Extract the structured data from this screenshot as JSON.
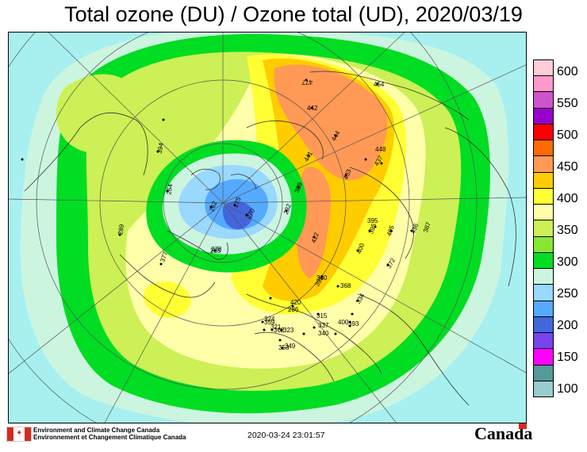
{
  "title": "Total ozone (DU) / Ozone total (UD), 2020/03/19",
  "legend": {
    "labels": [
      "600",
      "550",
      "500",
      "450",
      "400",
      "350",
      "300",
      "250",
      "200",
      "150",
      "100"
    ],
    "colors": [
      "#ffccd8",
      "#ff99cc",
      "#cc55cc",
      "#9900cc",
      "#ff0000",
      "#ff6a00",
      "#ff9955",
      "#ffcc00",
      "#ffff33",
      "#ffffaa",
      "#ccf055",
      "#88e633",
      "#00dd22",
      "#ccf5e0",
      "#99d8ff",
      "#55aaff",
      "#4466dd",
      "#7744ee",
      "#ff00ff",
      "#559999",
      "#99cccc"
    ]
  },
  "station_values": [
    "477",
    "442",
    "454",
    "444",
    "437",
    "441",
    "389",
    "433",
    "448",
    "422",
    "380",
    "395",
    "405",
    "436",
    "387",
    "400",
    "372",
    "264",
    "262",
    "275",
    "270",
    "285",
    "282",
    "368",
    "420",
    "334",
    "391",
    "395",
    "393",
    "353",
    "278",
    "324",
    "321",
    "286",
    "359",
    "362",
    "323",
    "315",
    "337",
    "340",
    "349",
    "377",
    "394",
    "400",
    "289"
  ],
  "footer": {
    "dept_en": "Environment and Climate Change Canada",
    "dept_fr": "Environnement et Changement Climatique Canada",
    "timestamp": "2020-03-24 23:01:57",
    "wordmark": "Canada"
  }
}
